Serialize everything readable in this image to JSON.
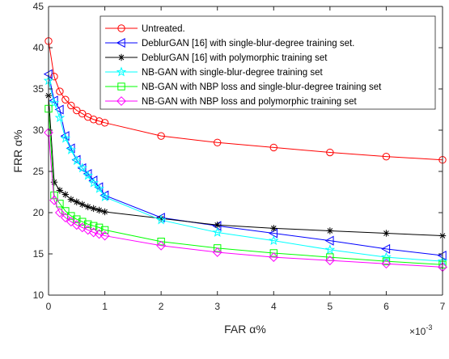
{
  "chart_data": {
    "type": "line",
    "xlabel": "FAR α%",
    "ylabel": "FRR α%",
    "x_multiplier": "×10",
    "x_multiplier_exp": "-3",
    "xlim": [
      0,
      7
    ],
    "ylim": [
      10,
      45
    ],
    "xticks": [
      "0",
      "1",
      "2",
      "3",
      "4",
      "5",
      "6",
      "7"
    ],
    "yticks": [
      "10",
      "15",
      "20",
      "25",
      "30",
      "35",
      "40",
      "45"
    ],
    "grid": false,
    "legend_position": "top-right",
    "series": [
      {
        "name": "Untreated.",
        "color": "#ff0000",
        "marker": "circle",
        "x": [
          0,
          0.1,
          0.2,
          0.3,
          0.4,
          0.5,
          0.6,
          0.7,
          0.8,
          0.9,
          1,
          2,
          3,
          4,
          5,
          6,
          7
        ],
        "y": [
          40.8,
          36.5,
          34.7,
          33.7,
          33.0,
          32.4,
          32.0,
          31.6,
          31.3,
          31.1,
          30.9,
          29.3,
          28.5,
          27.9,
          27.3,
          26.8,
          26.4
        ]
      },
      {
        "name": "DeblurGAN [16] with single-blur-degree training set.",
        "color": "#0000ff",
        "marker": "triangle-left",
        "x": [
          0,
          0.1,
          0.2,
          0.3,
          0.4,
          0.5,
          0.6,
          0.7,
          0.8,
          0.9,
          1,
          2,
          3,
          4,
          5,
          6,
          7
        ],
        "y": [
          36.8,
          33.6,
          32.5,
          29.3,
          27.8,
          26.4,
          25.4,
          24.7,
          23.9,
          23.1,
          22.1,
          19.4,
          18.4,
          17.5,
          16.6,
          15.6,
          14.8
        ]
      },
      {
        "name": "DeblurGAN [16] with polymorphic training set",
        "color": "#000000",
        "marker": "asterisk",
        "x": [
          0,
          0.1,
          0.2,
          0.3,
          0.4,
          0.5,
          0.6,
          0.7,
          0.8,
          0.9,
          1,
          2,
          3,
          4,
          5,
          6,
          7
        ],
        "y": [
          34.2,
          23.7,
          22.7,
          22.2,
          21.6,
          21.3,
          21.0,
          20.7,
          20.5,
          20.3,
          20.1,
          19.3,
          18.5,
          18.1,
          17.8,
          17.5,
          17.2
        ]
      },
      {
        "name": "NB-GAN with single-blur-degree training set",
        "color": "#00ffff",
        "marker": "star",
        "x": [
          0,
          0.1,
          0.2,
          0.3,
          0.4,
          0.5,
          0.6,
          0.7,
          0.8,
          0.9,
          1,
          2,
          3,
          4,
          5,
          6,
          7
        ],
        "y": [
          36.0,
          33.3,
          31.5,
          29.0,
          27.6,
          26.3,
          25.4,
          24.5,
          23.6,
          22.9,
          21.9,
          19.1,
          17.6,
          16.6,
          15.5,
          14.6,
          14.1
        ]
      },
      {
        "name": "NB-GAN with NBP loss and single-blur-degree training set",
        "color": "#00ff00",
        "marker": "square",
        "x": [
          0,
          0.1,
          0.2,
          0.3,
          0.4,
          0.5,
          0.6,
          0.7,
          0.8,
          0.9,
          1,
          2,
          3,
          4,
          5,
          6,
          7
        ],
        "y": [
          32.6,
          22.1,
          21.1,
          20.2,
          19.6,
          19.2,
          18.9,
          18.6,
          18.4,
          18.2,
          17.9,
          16.5,
          15.7,
          15.1,
          14.6,
          14.1,
          13.7
        ]
      },
      {
        "name": "NB-GAN with NBP loss and polymorphic training set",
        "color": "#ff00ff",
        "marker": "diamond",
        "x": [
          0,
          0.1,
          0.2,
          0.3,
          0.4,
          0.5,
          0.6,
          0.7,
          0.8,
          0.9,
          1,
          2,
          3,
          4,
          5,
          6,
          7
        ],
        "y": [
          29.7,
          21.5,
          20.0,
          19.4,
          18.9,
          18.5,
          18.2,
          17.9,
          17.6,
          17.4,
          17.2,
          16.0,
          15.2,
          14.6,
          14.2,
          13.8,
          13.4
        ]
      }
    ]
  }
}
